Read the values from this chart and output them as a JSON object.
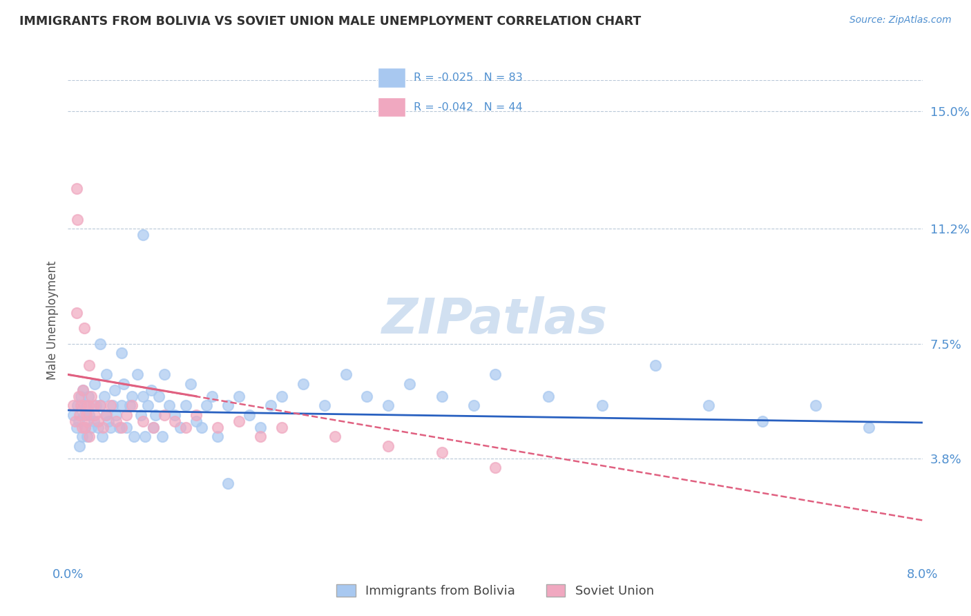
{
  "title": "IMMIGRANTS FROM BOLIVIA VS SOVIET UNION MALE UNEMPLOYMENT CORRELATION CHART",
  "source": "Source: ZipAtlas.com",
  "ylabel": "Male Unemployment",
  "x_min": 0.0,
  "x_max": 8.0,
  "y_min": 0.5,
  "y_max": 16.0,
  "y_ticks": [
    3.8,
    7.5,
    11.2,
    15.0
  ],
  "x_ticks": [
    0.0,
    8.0
  ],
  "x_tick_labels": [
    "0.0%",
    "8.0%"
  ],
  "y_tick_labels": [
    "3.8%",
    "7.5%",
    "11.2%",
    "15.0%"
  ],
  "color_bolivia": "#a8c8f0",
  "color_soviet": "#f0a8c0",
  "color_trend_bolivia": "#2860c0",
  "color_trend_soviet": "#e06080",
  "color_grid": "#b8c8d8",
  "color_axis_labels": "#5090d0",
  "color_title": "#303030",
  "watermark_color": "#ccddf0",
  "bolivia_x": [
    0.05,
    0.08,
    0.09,
    0.1,
    0.11,
    0.12,
    0.13,
    0.14,
    0.15,
    0.16,
    0.17,
    0.18,
    0.19,
    0.2,
    0.22,
    0.24,
    0.25,
    0.26,
    0.28,
    0.3,
    0.32,
    0.34,
    0.35,
    0.36,
    0.38,
    0.4,
    0.42,
    0.44,
    0.45,
    0.48,
    0.5,
    0.52,
    0.55,
    0.58,
    0.6,
    0.62,
    0.65,
    0.68,
    0.7,
    0.72,
    0.75,
    0.78,
    0.8,
    0.82,
    0.85,
    0.88,
    0.9,
    0.95,
    1.0,
    1.05,
    1.1,
    1.15,
    1.2,
    1.25,
    1.3,
    1.35,
    1.4,
    1.5,
    1.6,
    1.7,
    1.8,
    1.9,
    2.0,
    2.2,
    2.4,
    2.6,
    2.8,
    3.0,
    3.2,
    3.5,
    3.8,
    4.0,
    4.5,
    5.0,
    5.5,
    6.0,
    6.5,
    7.0,
    7.5,
    0.3,
    0.5,
    0.7,
    1.5
  ],
  "bolivia_y": [
    5.2,
    4.8,
    5.5,
    5.0,
    4.2,
    5.8,
    4.5,
    6.0,
    5.2,
    4.8,
    5.5,
    4.5,
    5.8,
    5.2,
    4.8,
    5.0,
    6.2,
    5.5,
    4.8,
    5.5,
    4.5,
    5.8,
    5.2,
    6.5,
    5.0,
    4.8,
    5.5,
    6.0,
    5.2,
    4.8,
    5.5,
    6.2,
    4.8,
    5.5,
    5.8,
    4.5,
    6.5,
    5.2,
    5.8,
    4.5,
    5.5,
    6.0,
    4.8,
    5.2,
    5.8,
    4.5,
    6.5,
    5.5,
    5.2,
    4.8,
    5.5,
    6.2,
    5.0,
    4.8,
    5.5,
    5.8,
    4.5,
    5.5,
    5.8,
    5.2,
    4.8,
    5.5,
    5.8,
    6.2,
    5.5,
    6.5,
    5.8,
    5.5,
    6.2,
    5.8,
    5.5,
    6.5,
    5.8,
    5.5,
    6.8,
    5.5,
    5.0,
    5.5,
    4.8,
    7.5,
    7.2,
    11.0,
    3.0
  ],
  "soviet_x": [
    0.05,
    0.07,
    0.08,
    0.09,
    0.1,
    0.11,
    0.12,
    0.13,
    0.14,
    0.15,
    0.16,
    0.17,
    0.18,
    0.19,
    0.2,
    0.22,
    0.24,
    0.25,
    0.28,
    0.3,
    0.33,
    0.36,
    0.4,
    0.45,
    0.5,
    0.55,
    0.6,
    0.7,
    0.8,
    0.9,
    1.0,
    1.1,
    1.2,
    1.4,
    1.6,
    1.8,
    2.0,
    2.5,
    3.0,
    3.5,
    4.0,
    0.08,
    0.15,
    0.2
  ],
  "soviet_y": [
    5.5,
    5.0,
    12.5,
    11.5,
    5.8,
    5.2,
    5.5,
    4.8,
    6.0,
    5.5,
    4.8,
    5.2,
    5.0,
    5.5,
    4.5,
    5.8,
    5.5,
    5.2,
    5.0,
    5.5,
    4.8,
    5.2,
    5.5,
    5.0,
    4.8,
    5.2,
    5.5,
    5.0,
    4.8,
    5.2,
    5.0,
    4.8,
    5.2,
    4.8,
    5.0,
    4.5,
    4.8,
    4.5,
    4.2,
    4.0,
    3.5,
    8.5,
    8.0,
    6.8
  ],
  "trend_bolivia_x0": 0.0,
  "trend_bolivia_x1": 8.0,
  "trend_bolivia_y0": 5.35,
  "trend_bolivia_y1": 4.95,
  "trend_soviet_x0": 0.0,
  "trend_soviet_x1": 8.0,
  "trend_soviet_y0": 6.5,
  "trend_soviet_y1": 1.8,
  "trend_soviet_solid_x0": 0.0,
  "trend_soviet_solid_x1": 1.2,
  "trend_soviet_solid_y0": 6.5,
  "trend_soviet_solid_y1": 5.8
}
